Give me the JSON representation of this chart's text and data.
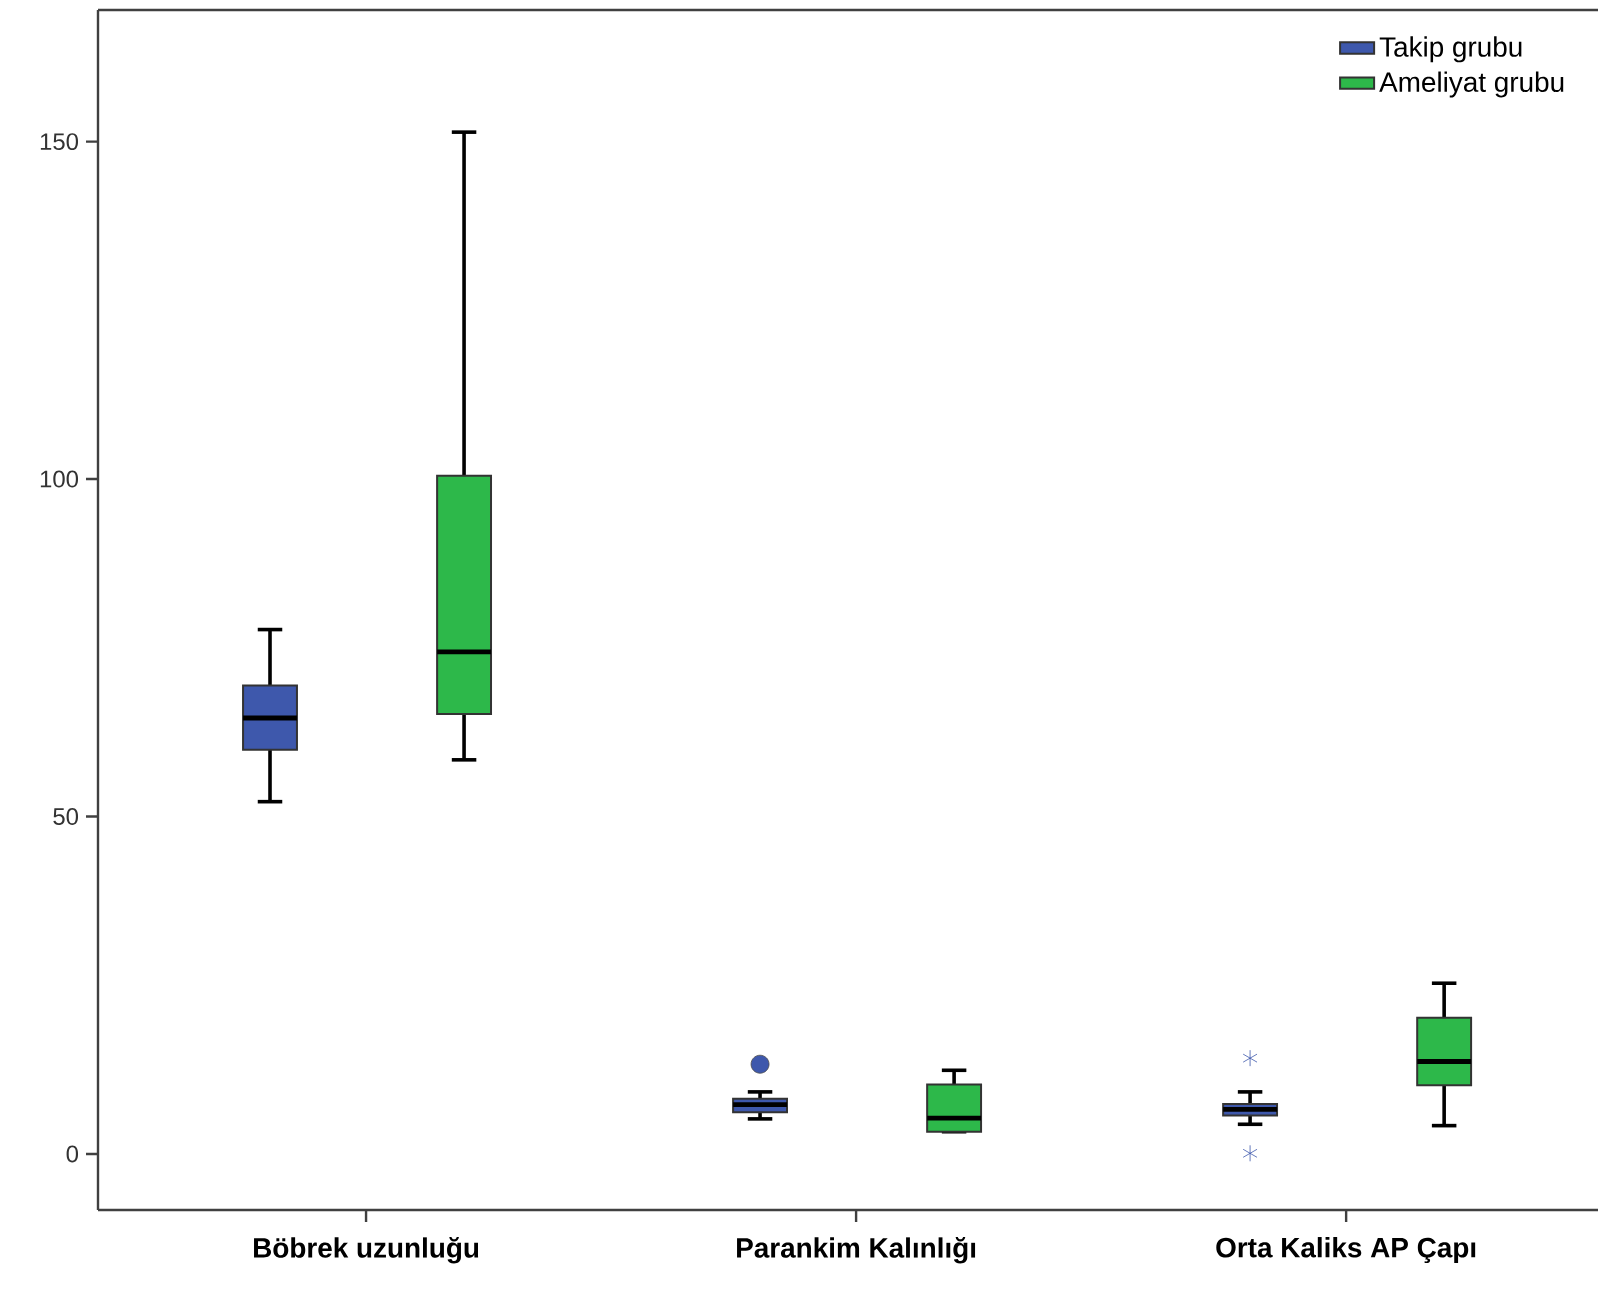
{
  "chart_data": {
    "type": "box",
    "categories": [
      "Böbrek uzunluğu",
      "Parankim Kalınlığı",
      "Orta Kaliks AP Çapı"
    ],
    "ylim": [
      -8.3,
      169.5
    ],
    "yticks": [
      0,
      50,
      100,
      150
    ],
    "legend": "top right",
    "grid": false,
    "series": [
      {
        "name": "Takip grubu",
        "color": "#3e58ac",
        "boxes": [
          {
            "low": 52.2,
            "q1": 59.9,
            "median": 64.6,
            "q3": 69.4,
            "high": 77.7
          },
          {
            "low": 5.2,
            "q1": 6.2,
            "median": 7.3,
            "q3": 8.2,
            "high": 9.2,
            "outliers": [
              13.3
            ]
          },
          {
            "low": 4.4,
            "q1": 5.7,
            "median": 6.6,
            "q3": 7.4,
            "high": 9.2,
            "outliers": [
              14.2,
              0.1
            ]
          }
        ]
      },
      {
        "name": "Ameliyat grubu",
        "color": "#2db84a",
        "boxes": [
          {
            "low": 58.4,
            "q1": 65.2,
            "median": 74.4,
            "q3": 100.5,
            "high": 151.4
          },
          {
            "low": 3.3,
            "q1": 3.3,
            "median": 5.3,
            "q3": 10.3,
            "high": 12.4
          },
          {
            "low": 4.2,
            "q1": 10.2,
            "median": 13.7,
            "q3": 20.2,
            "high": 25.3
          }
        ]
      }
    ]
  }
}
